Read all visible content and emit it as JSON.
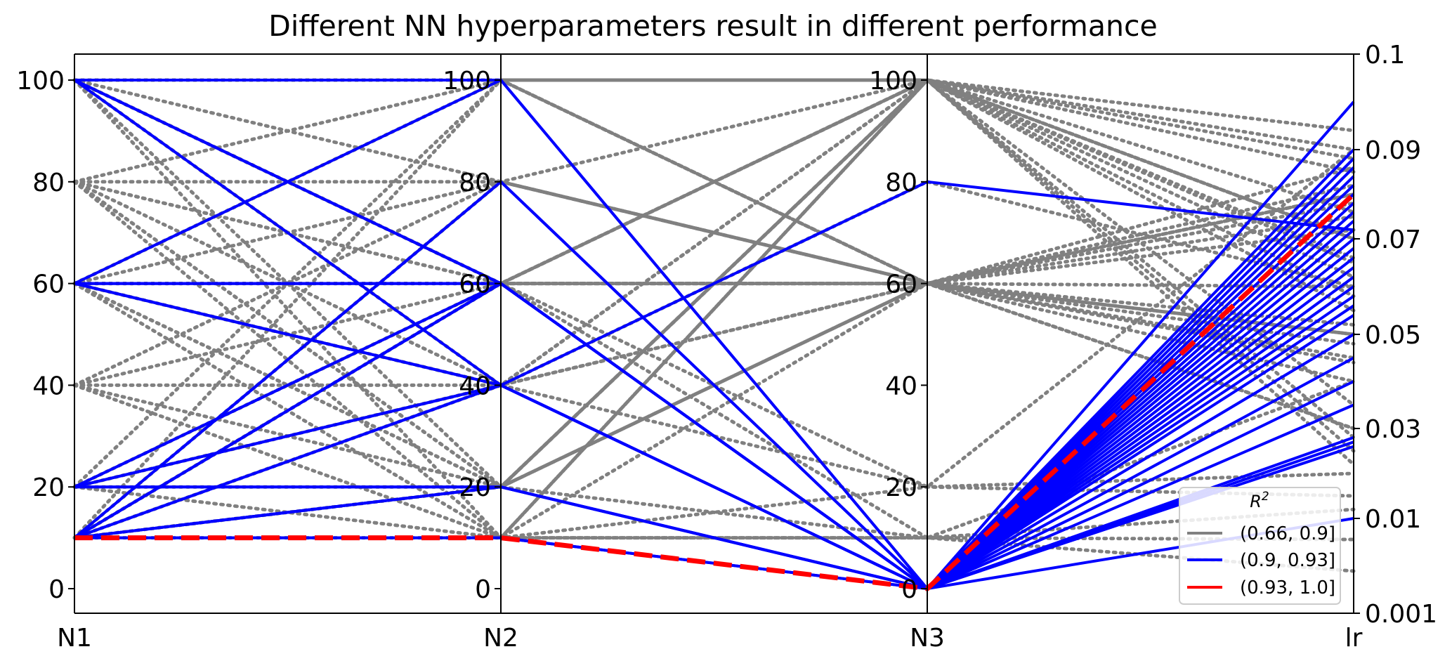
{
  "chart_data": {
    "type": "parallel_coordinates",
    "title": "Different NN hyperparameters result in different performance",
    "axes": [
      {
        "name": "N1",
        "ticks": [
          "0",
          "20",
          "40",
          "60",
          "80",
          "100"
        ]
      },
      {
        "name": "N2",
        "ticks": [
          "0",
          "20",
          "40",
          "60",
          "80",
          "100"
        ]
      },
      {
        "name": "N3",
        "ticks": [
          "0",
          "20",
          "40",
          "60",
          "80",
          "100"
        ]
      },
      {
        "name": "lr",
        "ticks": [
          "0.001",
          "0.01",
          "0.03",
          "0.05",
          "0.07",
          "0.09",
          "0.1"
        ]
      }
    ],
    "legend": {
      "title": "R",
      "title_sup": "2",
      "placement": "lower right",
      "entries": [
        {
          "label": "(0.66, 0.9]",
          "color": "#808080"
        },
        {
          "label": "(0.9, 0.93]",
          "color": "#0000ff"
        },
        {
          "label": "(0.93, 1.0]",
          "color": "#ff0000"
        }
      ]
    },
    "groups": [
      {
        "label": "(0.66, 0.9]",
        "color": "#808080",
        "style": "dotted",
        "lines": [
          [
            100,
            100,
            100,
            0.09
          ],
          [
            100,
            80,
            60,
            0.08
          ],
          [
            100,
            60,
            100,
            0.07
          ],
          [
            100,
            40,
            80,
            0.06
          ],
          [
            100,
            20,
            60,
            0.05
          ],
          [
            100,
            10,
            10,
            0.04
          ],
          [
            100,
            60,
            20,
            0.09
          ],
          [
            100,
            100,
            60,
            0.03
          ],
          [
            80,
            100,
            100,
            0.085
          ],
          [
            80,
            80,
            60,
            0.075
          ],
          [
            80,
            60,
            100,
            0.065
          ],
          [
            80,
            40,
            60,
            0.05
          ],
          [
            80,
            20,
            100,
            0.035
          ],
          [
            80,
            10,
            20,
            0.02
          ],
          [
            80,
            60,
            60,
            0.06
          ],
          [
            80,
            20,
            60,
            0.045
          ],
          [
            60,
            100,
            100,
            0.088
          ],
          [
            60,
            80,
            60,
            0.078
          ],
          [
            60,
            40,
            100,
            0.058
          ],
          [
            60,
            20,
            60,
            0.04
          ],
          [
            60,
            10,
            100,
            0.025
          ],
          [
            60,
            60,
            10,
            0.012
          ],
          [
            60,
            60,
            60,
            0.082
          ],
          [
            60,
            20,
            100,
            0.07
          ],
          [
            40,
            80,
            100,
            0.092
          ],
          [
            40,
            60,
            60,
            0.072
          ],
          [
            40,
            20,
            100,
            0.055
          ],
          [
            40,
            10,
            60,
            0.03
          ],
          [
            40,
            40,
            20,
            0.015
          ],
          [
            20,
            60,
            60,
            0.086
          ],
          [
            20,
            100,
            100,
            0.066
          ],
          [
            20,
            40,
            60,
            0.048
          ],
          [
            20,
            10,
            100,
            0.028
          ],
          [
            20,
            20,
            10,
            0.008
          ],
          [
            10,
            80,
            60,
            0.08
          ],
          [
            10,
            60,
            100,
            0.062
          ],
          [
            10,
            100,
            60,
            0.044
          ],
          [
            10,
            40,
            100,
            0.022
          ],
          [
            10,
            10,
            10,
            0.005
          ],
          [
            10,
            20,
            100,
            0.076
          ],
          [
            10,
            60,
            60,
            0.052
          ]
        ]
      },
      {
        "label": "(0.9, 0.93]",
        "color": "#0000ff",
        "style": "solid",
        "lines": [
          [
            100,
            60,
            0,
            0.095
          ],
          [
            100,
            40,
            0,
            0.09
          ],
          [
            100,
            100,
            0,
            0.088
          ],
          [
            100,
            60,
            0,
            0.086
          ],
          [
            60,
            100,
            0,
            0.084
          ],
          [
            60,
            60,
            0,
            0.082
          ],
          [
            60,
            40,
            0,
            0.08
          ],
          [
            60,
            60,
            0,
            0.078
          ],
          [
            20,
            60,
            0,
            0.076
          ],
          [
            20,
            40,
            0,
            0.074
          ],
          [
            20,
            20,
            0,
            0.072
          ],
          [
            20,
            60,
            0,
            0.07
          ],
          [
            10,
            80,
            0,
            0.068
          ],
          [
            10,
            60,
            0,
            0.066
          ],
          [
            10,
            20,
            0,
            0.064
          ],
          [
            10,
            40,
            80,
            0.072
          ],
          [
            10,
            10,
            0,
            0.062
          ],
          [
            10,
            10,
            0,
            0.06
          ],
          [
            100,
            60,
            0,
            0.058
          ],
          [
            60,
            60,
            0,
            0.056
          ],
          [
            20,
            40,
            0,
            0.054
          ],
          [
            10,
            60,
            0,
            0.05
          ],
          [
            10,
            20,
            0,
            0.045
          ],
          [
            20,
            20,
            0,
            0.04
          ],
          [
            60,
            40,
            0,
            0.035
          ],
          [
            10,
            80,
            0,
            0.028
          ],
          [
            10,
            60,
            0,
            0.027
          ],
          [
            10,
            40,
            0,
            0.026
          ],
          [
            10,
            20,
            0,
            0.01
          ]
        ]
      },
      {
        "label": "(0.93, 1.0]",
        "color": "#ff0000",
        "style": "dashed",
        "lines": [
          [
            10,
            10,
            0,
            0.08
          ]
        ]
      }
    ]
  }
}
